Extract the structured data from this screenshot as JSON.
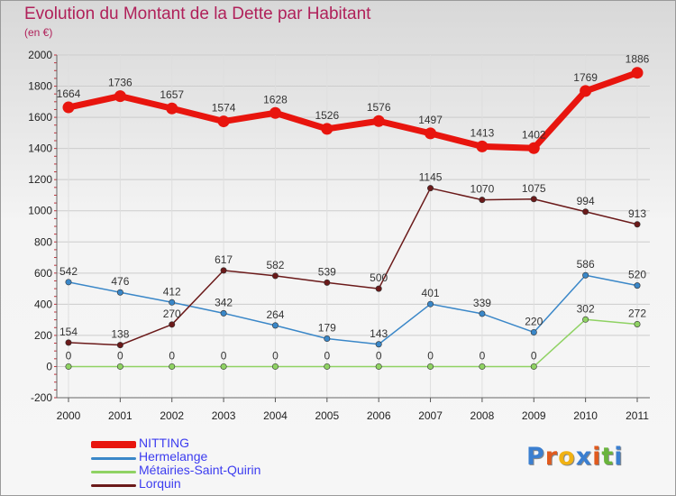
{
  "header": {
    "title": "Evolution du Montant de la Dette par Habitant",
    "subtitle": "(en €)"
  },
  "colors": {
    "title": "#b0215a",
    "legend_text": "#3c3cf0",
    "grid": "#cccccc",
    "axis_text": "#222222"
  },
  "logo": {
    "text": "Proxiti",
    "letter_colors": [
      "#3b7fd0",
      "#e05a1e",
      "#f1b213",
      "#3b7fd0",
      "#e05a1e",
      "#6ab43c",
      "#3b7fd0"
    ]
  },
  "chart_data": {
    "type": "line",
    "title": "Evolution du Montant de la Dette par Habitant",
    "subtitle": "(en €)",
    "xlabel": "",
    "ylabel": "",
    "x": [
      "2000",
      "2001",
      "2002",
      "2003",
      "2004",
      "2005",
      "2006",
      "2007",
      "2008",
      "2009",
      "2010",
      "2011"
    ],
    "ylim": [
      -200,
      2000
    ],
    "yticks": [
      -200,
      0,
      200,
      400,
      600,
      800,
      1000,
      1200,
      1400,
      1600,
      1800,
      2000
    ],
    "grid": true,
    "legend_position": "bottom-left",
    "series": [
      {
        "name": "NITTING",
        "color": "#e8150e",
        "emphasis": true,
        "values": [
          1664,
          1736,
          1657,
          1574,
          1628,
          1526,
          1576,
          1497,
          1413,
          1402,
          1769,
          1886
        ]
      },
      {
        "name": "Hermelange",
        "color": "#3a87c8",
        "emphasis": false,
        "values": [
          542,
          476,
          412,
          342,
          264,
          179,
          143,
          401,
          339,
          220,
          586,
          520
        ]
      },
      {
        "name": "Métairies-Saint-Quirin",
        "color": "#8fd263",
        "emphasis": false,
        "values": [
          0,
          0,
          0,
          0,
          0,
          0,
          0,
          0,
          0,
          0,
          302,
          272
        ]
      },
      {
        "name": "Lorquin",
        "color": "#6b1a1a",
        "emphasis": false,
        "values": [
          154,
          138,
          270,
          617,
          582,
          539,
          500,
          1145,
          1070,
          1075,
          994,
          913
        ]
      }
    ]
  }
}
